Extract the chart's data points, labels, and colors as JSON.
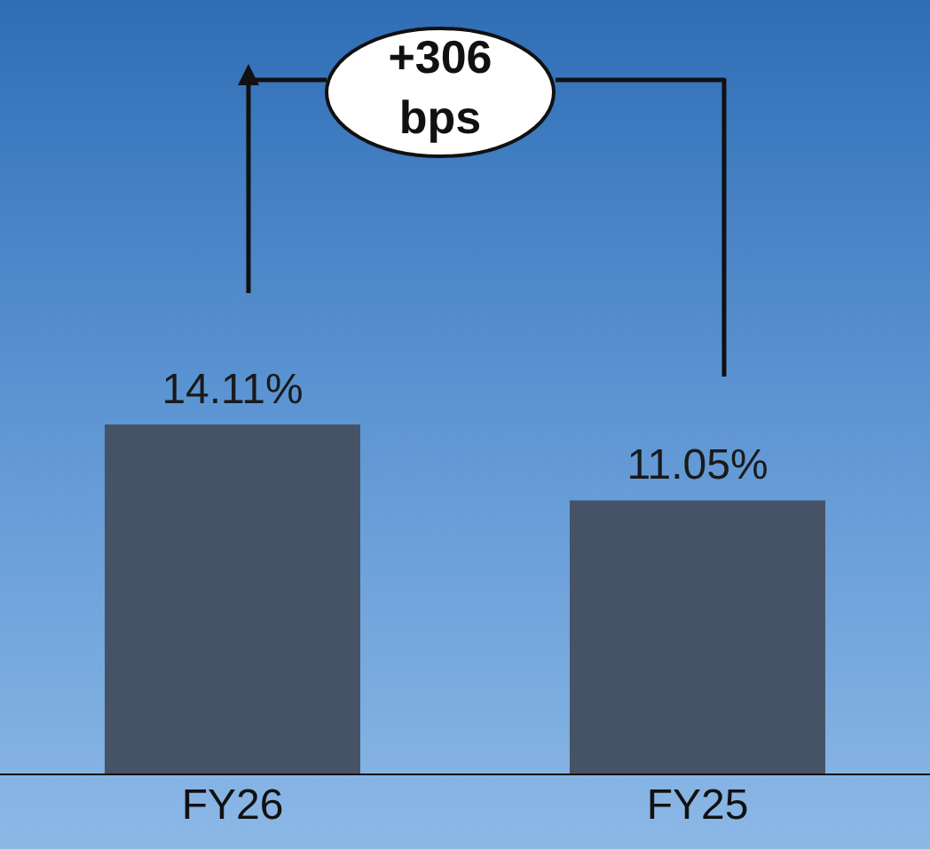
{
  "chart_data": {
    "type": "bar",
    "categories": [
      "FY26",
      "FY25"
    ],
    "values": [
      14.11,
      11.05
    ],
    "color": "#465366",
    "data_labels": true,
    "value_labels": [
      "14.11%",
      "11.05%"
    ],
    "annotations": [
      "+306 bps"
    ]
  }
}
